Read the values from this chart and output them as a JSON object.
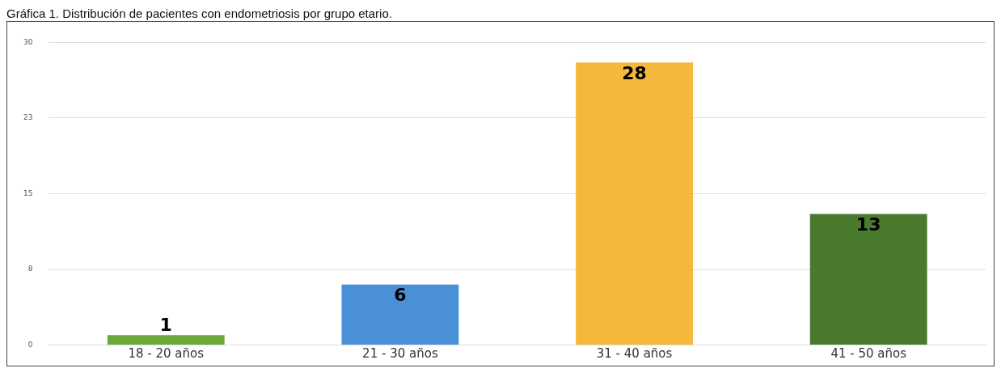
{
  "chart_data": {
    "type": "bar",
    "title": "Gráfica 1. Distribución de pacientes con endometriosis por grupo etario.",
    "categories": [
      "18 - 20 años",
      "21 - 30 años",
      "31 - 40 años",
      "41 - 50 años"
    ],
    "values": [
      1,
      6,
      28,
      13
    ],
    "colors": [
      "#6aaa3a",
      "#4a90d6",
      "#f5b83a",
      "#4a7a2e"
    ],
    "ylim": [
      0,
      30
    ],
    "yticks": [
      0,
      {
        "value": 7.5,
        "label": "8"
      },
      15,
      {
        "value": 22.5,
        "label": "23"
      },
      30
    ],
    "grid": "y",
    "data_labels": true,
    "legend": false
  }
}
